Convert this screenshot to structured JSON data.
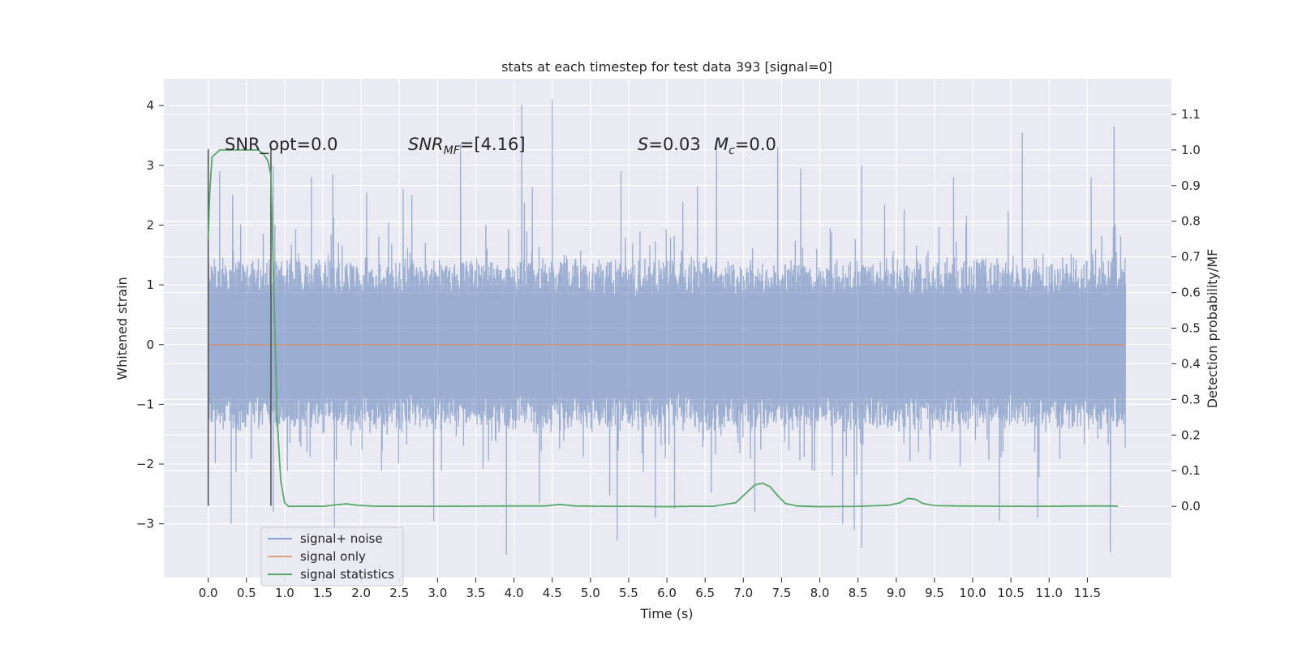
{
  "chart_data": {
    "type": "line",
    "title": "stats at each timestep for test data 393 [signal=0]",
    "xlabel": "Time (s)",
    "ylabel_left": "Whitened strain",
    "ylabel_right": "Detection probability/MF",
    "xlim": [
      -0.58,
      12.6
    ],
    "ylim_left": [
      -3.9,
      4.45
    ],
    "ylim_right": [
      -0.2,
      1.2
    ],
    "x_ticks": [
      "0.0",
      "0.5",
      "1.0",
      "1.5",
      "2.0",
      "2.5",
      "3.0",
      "3.5",
      "4.0",
      "4.5",
      "5.0",
      "5.5",
      "6.0",
      "6.5",
      "7.0",
      "7.5",
      "8.0",
      "8.5",
      "9.0",
      "9.5",
      "10.0",
      "10.5",
      "11.0",
      "11.5"
    ],
    "y_ticks_left": [
      "4",
      "3",
      "2",
      "1",
      "0",
      "−1",
      "−2",
      "−3"
    ],
    "y_ticks_right": [
      "1.1",
      "1.0",
      "0.9",
      "0.8",
      "0.7",
      "0.6",
      "0.5",
      "0.4",
      "0.3",
      "0.2",
      "0.1",
      "0.0"
    ],
    "grid": true,
    "legend_position": "lower-left",
    "annotations": {
      "snr_opt": "SNR_opt=0.0",
      "snr_mf_sym": "SNR",
      "snr_mf_sub": "MF",
      "snr_mf_val": "=[4.16]",
      "s_sym": "S",
      "s_val": "=0.03",
      "mc_sym": "M",
      "mc_sub": "c",
      "mc_val": "=0.0"
    },
    "vertical_lines": [
      {
        "x": 0.0,
        "ymin": -2.7,
        "ymax": 3.27
      },
      {
        "x": 0.82,
        "ymin": -2.7,
        "ymax": 3.27
      }
    ],
    "series": [
      {
        "name": "signal+ noise",
        "color": "#4c72b0",
        "envelope": "noise",
        "x_range": [
          0.0,
          12.0
        ],
        "typical_amplitude": 1.5,
        "upper_peaks": [
          [
            0.15,
            2.9
          ],
          [
            0.85,
            3.0
          ],
          [
            1.35,
            2.8
          ],
          [
            1.63,
            2.85
          ],
          [
            2.55,
            2.6
          ],
          [
            3.3,
            3.35
          ],
          [
            4.1,
            4.02
          ],
          [
            4.5,
            4.1
          ],
          [
            5.4,
            2.9
          ],
          [
            6.65,
            3.35
          ],
          [
            7.45,
            3.3
          ],
          [
            7.75,
            2.95
          ],
          [
            8.55,
            3.0
          ],
          [
            9.75,
            2.8
          ],
          [
            10.65,
            3.55
          ],
          [
            11.55,
            2.8
          ],
          [
            11.85,
            3.65
          ]
        ],
        "lower_peaks": [
          [
            0.3,
            -3.0
          ],
          [
            0.85,
            -2.8
          ],
          [
            1.65,
            -3.05
          ],
          [
            2.95,
            -2.95
          ],
          [
            3.9,
            -3.52
          ],
          [
            5.35,
            -3.28
          ],
          [
            5.85,
            -2.9
          ],
          [
            6.1,
            -2.75
          ],
          [
            7.15,
            -2.8
          ],
          [
            8.3,
            -3.0
          ],
          [
            8.45,
            -3.1
          ],
          [
            8.55,
            -3.4
          ],
          [
            10.35,
            -2.95
          ],
          [
            10.85,
            -2.9
          ],
          [
            11.8,
            -3.48
          ]
        ]
      },
      {
        "name": "signal only",
        "color": "#dd8452",
        "x": [
          0.0,
          12.0
        ],
        "y": [
          0.0,
          0.0
        ]
      },
      {
        "name": "signal statistics",
        "color": "#55a868",
        "axis": "right",
        "x": [
          0.0,
          0.02,
          0.05,
          0.1,
          0.15,
          0.25,
          0.4,
          0.55,
          0.65,
          0.72,
          0.78,
          0.82,
          0.86,
          0.9,
          0.95,
          1.0,
          1.05,
          1.2,
          1.5,
          1.8,
          1.95,
          2.2,
          3.0,
          4.0,
          4.4,
          4.6,
          4.8,
          5.2,
          5.6,
          6.0,
          6.3,
          6.6,
          6.9,
          7.05,
          7.15,
          7.25,
          7.35,
          7.45,
          7.55,
          7.7,
          8.0,
          8.5,
          8.9,
          9.05,
          9.15,
          9.25,
          9.35,
          9.5,
          9.8,
          10.5,
          11.0,
          11.5,
          11.8,
          11.9
        ],
        "y": [
          0.75,
          0.88,
          0.98,
          0.99,
          1.0,
          1.0,
          1.0,
          1.0,
          1.0,
          0.99,
          0.97,
          0.93,
          0.6,
          0.25,
          0.07,
          0.01,
          0.0,
          0.0,
          0.0,
          0.007,
          0.003,
          0.0,
          0.0,
          0.001,
          0.001,
          0.005,
          0.001,
          0.0,
          0.0,
          -0.001,
          0.0,
          0.0,
          0.01,
          0.04,
          0.06,
          0.065,
          0.055,
          0.03,
          0.008,
          0.001,
          -0.001,
          0.0,
          0.003,
          0.01,
          0.022,
          0.02,
          0.008,
          0.002,
          0.001,
          0.0,
          0.0,
          0.001,
          0.001,
          0.0
        ]
      }
    ]
  }
}
